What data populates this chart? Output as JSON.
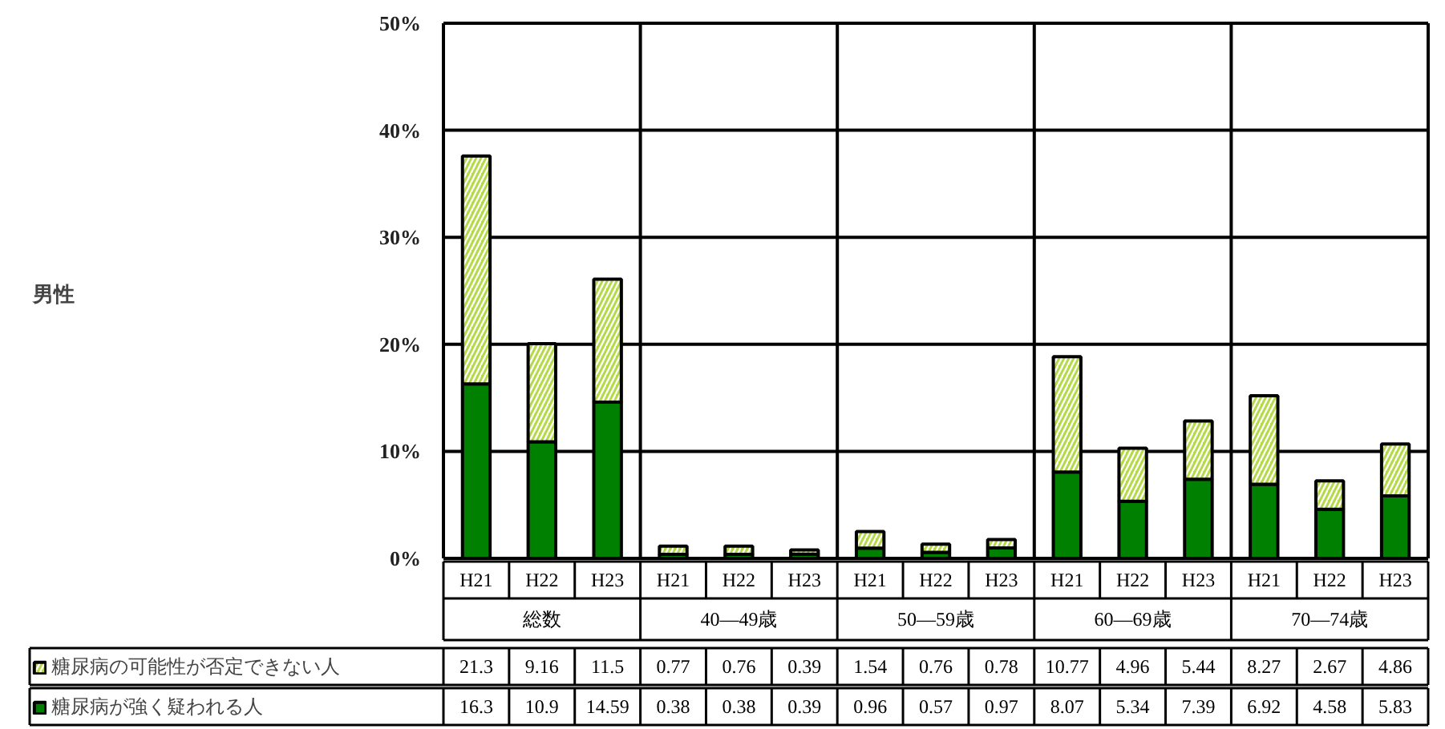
{
  "chart_data": {
    "type": "bar",
    "stacked": true,
    "categories": [
      "H21",
      "H22",
      "H23",
      "H21",
      "H22",
      "H23",
      "H21",
      "H22",
      "H23",
      "H21",
      "H22",
      "H23",
      "H21",
      "H22",
      "H23"
    ],
    "annotations": [
      "男性",
      "総数",
      "40―49歳",
      "50―59歳",
      "60―69歳",
      "70―74歳"
    ],
    "series": [
      {
        "name": "糖尿病が強く疑われる人",
        "color": "#008000",
        "values": [
          16.3,
          10.9,
          14.59,
          0.38,
          0.38,
          0.39,
          0.96,
          0.57,
          0.97,
          8.07,
          5.34,
          7.39,
          6.92,
          4.58,
          5.83
        ]
      },
      {
        "name": "糖尿病の可能性が否定できない人",
        "color": "#b5d94a",
        "values": [
          21.3,
          9.16,
          11.5,
          0.77,
          0.76,
          0.39,
          1.54,
          0.76,
          0.78,
          10.77,
          4.96,
          5.44,
          8.27,
          2.67,
          4.86
        ]
      }
    ],
    "ylim": [
      0,
      50
    ],
    "yticks": [
      {
        "value": 0,
        "label": "0%"
      },
      {
        "value": 10,
        "label": "10%"
      },
      {
        "value": 20,
        "label": "20%"
      },
      {
        "value": 30,
        "label": "30%"
      },
      {
        "value": 40,
        "label": "40%"
      },
      {
        "value": 50,
        "label": "50%"
      }
    ],
    "grid": "y",
    "data_labels": true,
    "legend": "bottom left"
  }
}
